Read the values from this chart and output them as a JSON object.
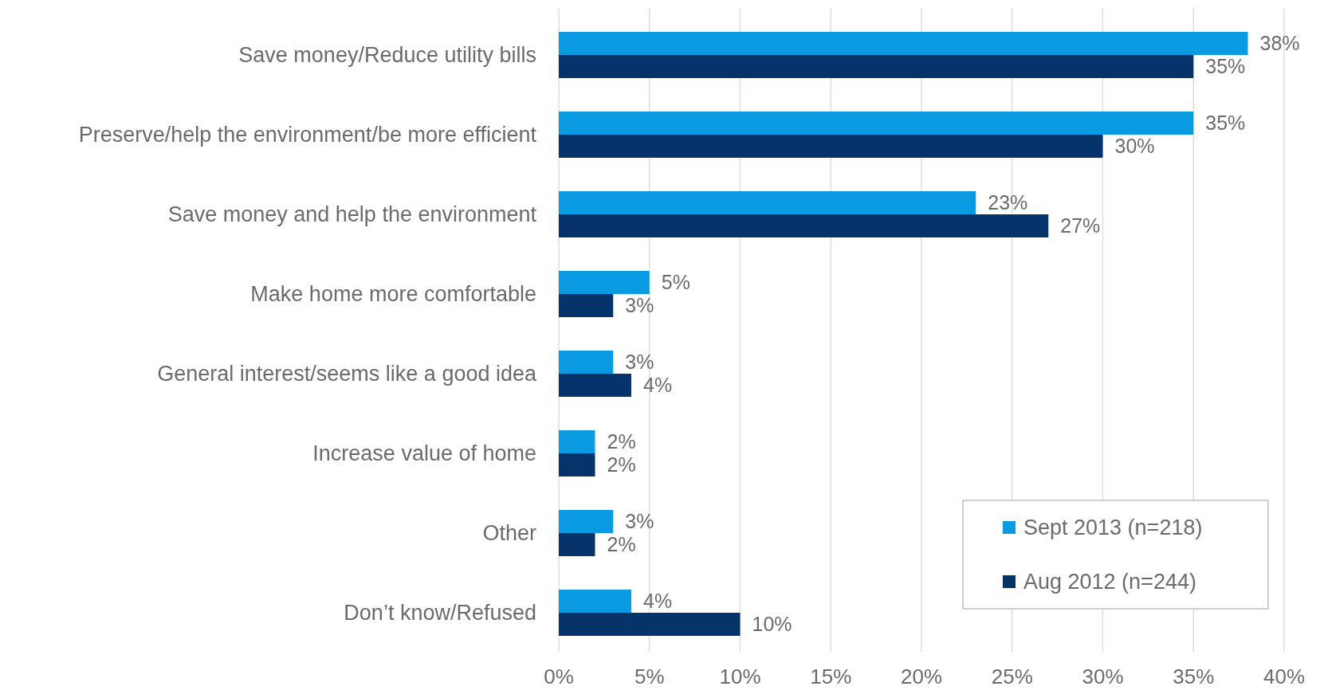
{
  "chart_data": {
    "type": "bar",
    "orientation": "horizontal",
    "categories": [
      "Save money/Reduce utility bills",
      "Preserve/help the environment/be more efficient",
      "Save money and help the environment",
      "Make home more comfortable",
      "General interest/seems like a good idea",
      "Increase value of home",
      "Other",
      "Don’t know/Refused"
    ],
    "series": [
      {
        "name": "Sept 2013 (n=218)",
        "color": "#0a9ae2",
        "values": [
          38,
          35,
          23,
          5,
          3,
          2,
          3,
          4
        ],
        "value_labels": [
          "38%",
          "35%",
          "23%",
          "5%",
          "3%",
          "2%",
          "3%",
          "4%"
        ]
      },
      {
        "name": "Aug 2012 (n=244)",
        "color": "#06346a",
        "values": [
          35,
          30,
          27,
          3,
          4,
          2,
          2,
          10
        ],
        "value_labels": [
          "35%",
          "30%",
          "27%",
          "3%",
          "4%",
          "2%",
          "2%",
          "10%"
        ]
      }
    ],
    "xlim": [
      0,
      40
    ],
    "xticks": [
      {
        "value": 0,
        "label": "0%"
      },
      {
        "value": 5,
        "label": "5%"
      },
      {
        "value": 10,
        "label": "10%"
      },
      {
        "value": 15,
        "label": "15%"
      },
      {
        "value": 20,
        "label": "20%"
      },
      {
        "value": 25,
        "label": "25%"
      },
      {
        "value": 30,
        "label": "30%"
      },
      {
        "value": 35,
        "label": "35%"
      },
      {
        "value": 40,
        "label": "40%"
      }
    ],
    "grid": "x",
    "legend": "bottom right"
  }
}
